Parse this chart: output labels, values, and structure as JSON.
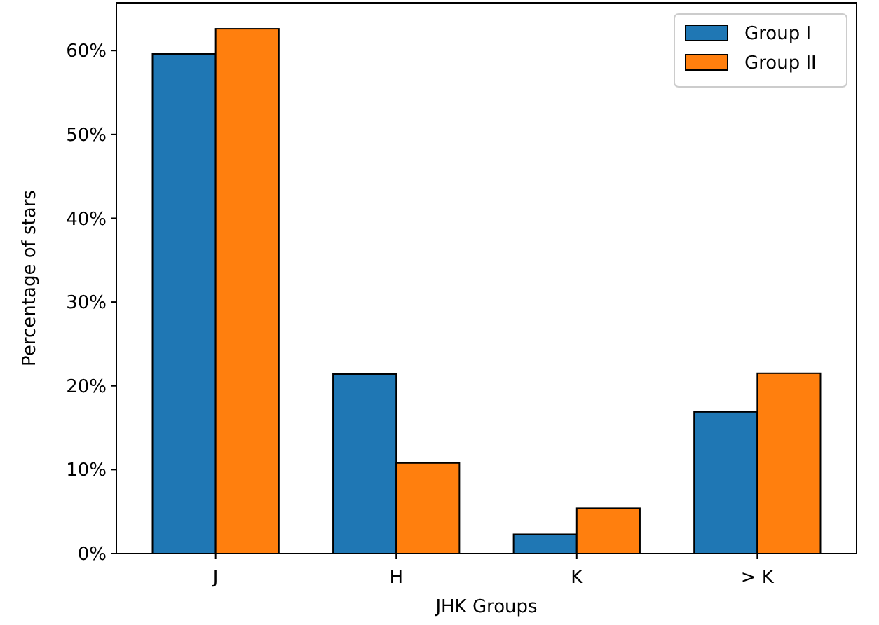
{
  "chart_data": {
    "type": "bar",
    "xlabel": "JHK Groups",
    "ylabel": "Percentage of stars",
    "categories": [
      "J",
      "H",
      "K",
      "> K"
    ],
    "series": [
      {
        "name": "Group I",
        "color": "#1f77b4",
        "values": [
          59.6,
          21.4,
          2.3,
          16.9
        ]
      },
      {
        "name": "Group II",
        "color": "#ff7f0e",
        "values": [
          62.6,
          10.8,
          5.4,
          21.5
        ]
      }
    ],
    "ylim": [
      0,
      65.7
    ],
    "yticks": [
      {
        "value": 0,
        "label": "0%"
      },
      {
        "value": 10,
        "label": "10%"
      },
      {
        "value": 20,
        "label": "20%"
      },
      {
        "value": 30,
        "label": "30%"
      },
      {
        "value": 40,
        "label": "40%"
      },
      {
        "value": 50,
        "label": "50%"
      },
      {
        "value": 60,
        "label": "60%"
      }
    ],
    "legend": "top right"
  }
}
